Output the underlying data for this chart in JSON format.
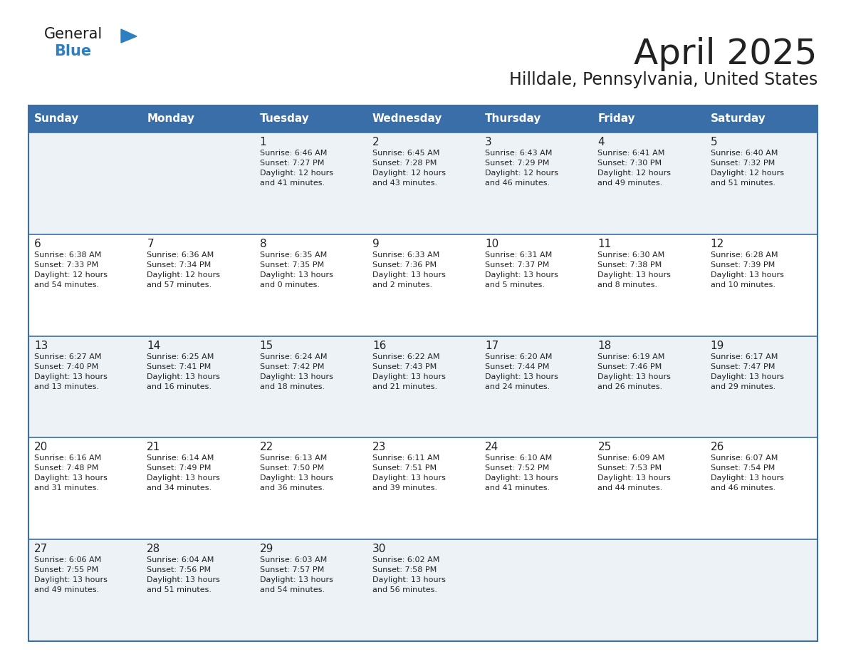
{
  "title": "April 2025",
  "subtitle": "Hilldale, Pennsylvania, United States",
  "header_bg_color": "#3a6ea8",
  "header_text_color": "#ffffff",
  "row_bg_even": "#edf2f7",
  "row_bg_odd": "#ffffff",
  "cell_text_color": "#222222",
  "day_number_color": "#222222",
  "border_color": "#3a6ea8",
  "days_of_week": [
    "Sunday",
    "Monday",
    "Tuesday",
    "Wednesday",
    "Thursday",
    "Friday",
    "Saturday"
  ],
  "weeks": [
    [
      {
        "day": "",
        "info": ""
      },
      {
        "day": "",
        "info": ""
      },
      {
        "day": "1",
        "info": "Sunrise: 6:46 AM\nSunset: 7:27 PM\nDaylight: 12 hours\nand 41 minutes."
      },
      {
        "day": "2",
        "info": "Sunrise: 6:45 AM\nSunset: 7:28 PM\nDaylight: 12 hours\nand 43 minutes."
      },
      {
        "day": "3",
        "info": "Sunrise: 6:43 AM\nSunset: 7:29 PM\nDaylight: 12 hours\nand 46 minutes."
      },
      {
        "day": "4",
        "info": "Sunrise: 6:41 AM\nSunset: 7:30 PM\nDaylight: 12 hours\nand 49 minutes."
      },
      {
        "day": "5",
        "info": "Sunrise: 6:40 AM\nSunset: 7:32 PM\nDaylight: 12 hours\nand 51 minutes."
      }
    ],
    [
      {
        "day": "6",
        "info": "Sunrise: 6:38 AM\nSunset: 7:33 PM\nDaylight: 12 hours\nand 54 minutes."
      },
      {
        "day": "7",
        "info": "Sunrise: 6:36 AM\nSunset: 7:34 PM\nDaylight: 12 hours\nand 57 minutes."
      },
      {
        "day": "8",
        "info": "Sunrise: 6:35 AM\nSunset: 7:35 PM\nDaylight: 13 hours\nand 0 minutes."
      },
      {
        "day": "9",
        "info": "Sunrise: 6:33 AM\nSunset: 7:36 PM\nDaylight: 13 hours\nand 2 minutes."
      },
      {
        "day": "10",
        "info": "Sunrise: 6:31 AM\nSunset: 7:37 PM\nDaylight: 13 hours\nand 5 minutes."
      },
      {
        "day": "11",
        "info": "Sunrise: 6:30 AM\nSunset: 7:38 PM\nDaylight: 13 hours\nand 8 minutes."
      },
      {
        "day": "12",
        "info": "Sunrise: 6:28 AM\nSunset: 7:39 PM\nDaylight: 13 hours\nand 10 minutes."
      }
    ],
    [
      {
        "day": "13",
        "info": "Sunrise: 6:27 AM\nSunset: 7:40 PM\nDaylight: 13 hours\nand 13 minutes."
      },
      {
        "day": "14",
        "info": "Sunrise: 6:25 AM\nSunset: 7:41 PM\nDaylight: 13 hours\nand 16 minutes."
      },
      {
        "day": "15",
        "info": "Sunrise: 6:24 AM\nSunset: 7:42 PM\nDaylight: 13 hours\nand 18 minutes."
      },
      {
        "day": "16",
        "info": "Sunrise: 6:22 AM\nSunset: 7:43 PM\nDaylight: 13 hours\nand 21 minutes."
      },
      {
        "day": "17",
        "info": "Sunrise: 6:20 AM\nSunset: 7:44 PM\nDaylight: 13 hours\nand 24 minutes."
      },
      {
        "day": "18",
        "info": "Sunrise: 6:19 AM\nSunset: 7:46 PM\nDaylight: 13 hours\nand 26 minutes."
      },
      {
        "day": "19",
        "info": "Sunrise: 6:17 AM\nSunset: 7:47 PM\nDaylight: 13 hours\nand 29 minutes."
      }
    ],
    [
      {
        "day": "20",
        "info": "Sunrise: 6:16 AM\nSunset: 7:48 PM\nDaylight: 13 hours\nand 31 minutes."
      },
      {
        "day": "21",
        "info": "Sunrise: 6:14 AM\nSunset: 7:49 PM\nDaylight: 13 hours\nand 34 minutes."
      },
      {
        "day": "22",
        "info": "Sunrise: 6:13 AM\nSunset: 7:50 PM\nDaylight: 13 hours\nand 36 minutes."
      },
      {
        "day": "23",
        "info": "Sunrise: 6:11 AM\nSunset: 7:51 PM\nDaylight: 13 hours\nand 39 minutes."
      },
      {
        "day": "24",
        "info": "Sunrise: 6:10 AM\nSunset: 7:52 PM\nDaylight: 13 hours\nand 41 minutes."
      },
      {
        "day": "25",
        "info": "Sunrise: 6:09 AM\nSunset: 7:53 PM\nDaylight: 13 hours\nand 44 minutes."
      },
      {
        "day": "26",
        "info": "Sunrise: 6:07 AM\nSunset: 7:54 PM\nDaylight: 13 hours\nand 46 minutes."
      }
    ],
    [
      {
        "day": "27",
        "info": "Sunrise: 6:06 AM\nSunset: 7:55 PM\nDaylight: 13 hours\nand 49 minutes."
      },
      {
        "day": "28",
        "info": "Sunrise: 6:04 AM\nSunset: 7:56 PM\nDaylight: 13 hours\nand 51 minutes."
      },
      {
        "day": "29",
        "info": "Sunrise: 6:03 AM\nSunset: 7:57 PM\nDaylight: 13 hours\nand 54 minutes."
      },
      {
        "day": "30",
        "info": "Sunrise: 6:02 AM\nSunset: 7:58 PM\nDaylight: 13 hours\nand 56 minutes."
      },
      {
        "day": "",
        "info": ""
      },
      {
        "day": "",
        "info": ""
      },
      {
        "day": "",
        "info": ""
      }
    ]
  ],
  "logo_general_color": "#1a1a1a",
  "logo_blue_color": "#2e7fc1",
  "logo_triangle_color": "#2e7fc1",
  "title_fontsize": 36,
  "subtitle_fontsize": 17,
  "header_fontsize": 11,
  "day_num_fontsize": 11,
  "cell_fontsize": 8.0
}
